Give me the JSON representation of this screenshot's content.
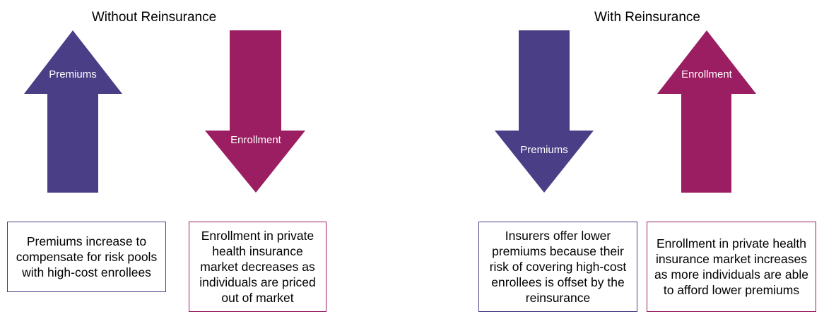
{
  "left": {
    "title": "Without Reinsurance",
    "arrows": [
      "Premiums",
      "Enrollment"
    ],
    "boxes": [
      "Premiums increase to compensate for risk pools with high-cost enrollees",
      "Enrollment in private health insurance market decreases as individuals are priced out of market"
    ]
  },
  "right": {
    "title": "With Reinsurance",
    "arrows": [
      "Premiums",
      "Enrollment"
    ],
    "boxes": [
      "Insurers offer lower premiums because their risk of covering high-cost enrollees is offset by the reinsurance",
      "Enrollment in private health insurance market increases as more individuals are able to afford lower premiums"
    ]
  }
}
